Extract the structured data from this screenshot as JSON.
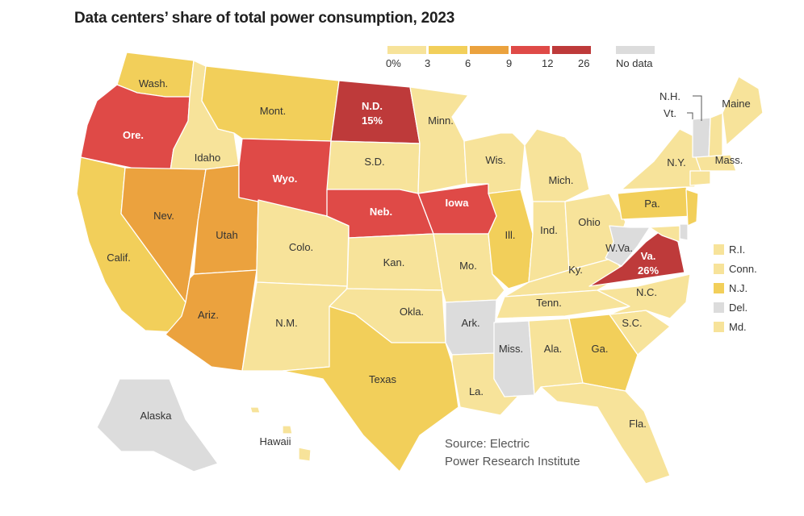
{
  "title": "Data centers’ share of total power consumption, 2023",
  "legend": {
    "bins": [
      {
        "color": "#f7e39a"
      },
      {
        "color": "#f2cf5a"
      },
      {
        "color": "#eba23e"
      },
      {
        "color": "#df4a47"
      },
      {
        "color": "#be3a3a"
      }
    ],
    "ticks": [
      "0%",
      "3",
      "6",
      "9",
      "12",
      "26"
    ],
    "no_data_label": "No data",
    "no_data_color": "#dcdcdc"
  },
  "map_data": {
    "states": [
      {
        "label": "Wash.",
        "class": "1"
      },
      {
        "label": "Ore.",
        "class": "4"
      },
      {
        "label": "Calif.",
        "class": "1"
      },
      {
        "label": "Idaho",
        "class": "0"
      },
      {
        "label": "Nev.",
        "class": "2"
      },
      {
        "label": "Utah",
        "class": "2"
      },
      {
        "label": "Ariz.",
        "class": "2"
      },
      {
        "label": "Mont.",
        "class": "1"
      },
      {
        "label": "Wyo.",
        "class": "4"
      },
      {
        "label": "Colo.",
        "class": "0"
      },
      {
        "label": "N.M.",
        "class": "0"
      },
      {
        "label": "N.D.",
        "value_label": "15%",
        "class": "5"
      },
      {
        "label": "S.D.",
        "class": "0"
      },
      {
        "label": "Neb.",
        "class": "4"
      },
      {
        "label": "Kan.",
        "class": "0"
      },
      {
        "label": "Okla.",
        "class": "0"
      },
      {
        "label": "Texas",
        "class": "1"
      },
      {
        "label": "Minn.",
        "class": "0"
      },
      {
        "label": "Iowa",
        "class": "4"
      },
      {
        "label": "Mo.",
        "class": "0"
      },
      {
        "label": "Ark.",
        "class": "nodata"
      },
      {
        "label": "La.",
        "class": "0"
      },
      {
        "label": "Wis.",
        "class": "0"
      },
      {
        "label": "Ill.",
        "class": "1"
      },
      {
        "label": "Mich.",
        "class": "0"
      },
      {
        "label": "Ind.",
        "class": "0"
      },
      {
        "label": "Ohio",
        "class": "0"
      },
      {
        "label": "Ky.",
        "class": "0"
      },
      {
        "label": "Tenn.",
        "class": "0"
      },
      {
        "label": "Miss.",
        "class": "nodata"
      },
      {
        "label": "Ala.",
        "class": "0"
      },
      {
        "label": "Ga.",
        "class": "1"
      },
      {
        "label": "Fla.",
        "class": "0"
      },
      {
        "label": "S.C.",
        "class": "0"
      },
      {
        "label": "N.C.",
        "class": "0"
      },
      {
        "label": "Va.",
        "value_label": "26%",
        "class": "5"
      },
      {
        "label": "W.Va.",
        "class": "nodata"
      },
      {
        "label": "Pa.",
        "class": "1"
      },
      {
        "label": "N.Y.",
        "class": "0"
      },
      {
        "label": "Vt.",
        "class": "nodata"
      },
      {
        "label": "N.H.",
        "class": "0"
      },
      {
        "label": "Maine",
        "class": "0"
      },
      {
        "label": "Mass.",
        "class": "0"
      },
      {
        "label": "Alaska",
        "class": "nodata"
      },
      {
        "label": "Hawaii",
        "class": "0"
      }
    ],
    "small_states": [
      {
        "label": "R.I.",
        "color": "#f7e39a"
      },
      {
        "label": "Conn.",
        "color": "#f7e39a"
      },
      {
        "label": "N.J.",
        "color": "#f2cf5a"
      },
      {
        "label": "Del.",
        "color": "#dcdcdc"
      },
      {
        "label": "Md.",
        "color": "#f7e39a"
      }
    ]
  },
  "source": {
    "line1": "Source: Electric",
    "line2": "Power Research Institute"
  }
}
